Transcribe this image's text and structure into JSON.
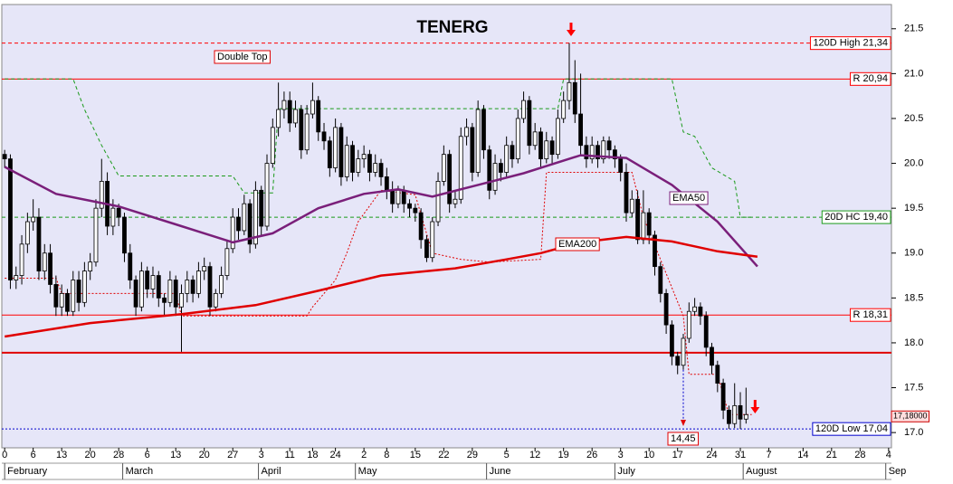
{
  "chart_data": {
    "type": "candlestick",
    "title": "TENERG",
    "title_color": "#1a8c1a",
    "background": "#e6e6f8",
    "xlim": [
      -0.5,
      155.5
    ],
    "ylim": [
      16.83,
      21.77
    ],
    "yticks": [
      {
        "value": 17,
        "label": "17.0"
      },
      17.5,
      {
        "value": 18,
        "label": "18.0"
      },
      18.5,
      {
        "value": 19,
        "label": "19.0"
      },
      19.5,
      {
        "value": 20,
        "label": "20.0"
      },
      20.5,
      {
        "value": 21,
        "label": "21.0"
      },
      21.5
    ],
    "xticks": [
      {
        "value": 0,
        "label": "0"
      },
      {
        "value": 5,
        "label": "6"
      },
      {
        "value": 10,
        "label": "13"
      },
      {
        "value": 15,
        "label": "20"
      },
      {
        "value": 20,
        "label": "28"
      },
      {
        "value": 25,
        "label": "6"
      },
      {
        "value": 30,
        "label": "13"
      },
      {
        "value": 35,
        "label": "20"
      },
      {
        "value": 40,
        "label": "27"
      },
      {
        "value": 45,
        "label": "3"
      },
      {
        "value": 50,
        "label": "11"
      },
      {
        "value": 54,
        "label": "18"
      },
      {
        "value": 58,
        "label": "24"
      },
      {
        "value": 63,
        "label": "2"
      },
      {
        "value": 67,
        "label": "8"
      },
      {
        "value": 72,
        "label": "15"
      },
      {
        "value": 77,
        "label": "22"
      },
      {
        "value": 82,
        "label": "29"
      },
      {
        "value": 88,
        "label": "5"
      },
      {
        "value": 93,
        "label": "12"
      },
      {
        "value": 98,
        "label": "19"
      },
      {
        "value": 103,
        "label": "26"
      },
      {
        "value": 108,
        "label": "3"
      },
      {
        "value": 113,
        "label": "10"
      },
      {
        "value": 118,
        "label": "17"
      },
      {
        "value": 124,
        "label": "24"
      },
      {
        "value": 129,
        "label": "31"
      },
      {
        "value": 134,
        "label": "7"
      },
      {
        "value": 140,
        "label": "14"
      },
      {
        "value": 145,
        "label": "21"
      },
      {
        "value": 150,
        "label": "28"
      },
      {
        "value": 155,
        "label": "4"
      }
    ],
    "month_ticks": [
      {
        "value": 0,
        "label": "February"
      },
      {
        "value": 20.7,
        "label": "March"
      },
      {
        "value": 44.5,
        "label": "April"
      },
      {
        "value": 61.5,
        "label": "May"
      },
      {
        "value": 84.5,
        "label": "June"
      },
      {
        "value": 107,
        "label": "July"
      },
      {
        "value": 129.5,
        "label": "August"
      },
      {
        "value": 154.5,
        "label": "Sep"
      }
    ],
    "ohlc": [
      [
        20.1,
        20.15,
        19.95,
        20.05
      ],
      [
        20.05,
        20.1,
        18.6,
        18.7
      ],
      [
        18.7,
        18.85,
        18.6,
        18.75
      ],
      [
        18.75,
        19.2,
        18.65,
        19.1
      ],
      [
        19.1,
        19.45,
        19.0,
        19.35
      ],
      [
        19.35,
        19.6,
        19.25,
        19.4
      ],
      [
        19.4,
        19.5,
        18.7,
        18.8
      ],
      [
        18.8,
        19.1,
        18.7,
        19.0
      ],
      [
        19.0,
        19.1,
        18.55,
        18.65
      ],
      [
        18.65,
        18.75,
        18.3,
        18.4
      ],
      [
        18.4,
        18.65,
        18.3,
        18.55
      ],
      [
        18.55,
        18.6,
        18.3,
        18.35
      ],
      [
        18.35,
        18.8,
        18.3,
        18.7
      ],
      [
        18.7,
        18.8,
        18.35,
        18.45
      ],
      [
        18.45,
        18.9,
        18.4,
        18.8
      ],
      [
        18.8,
        19.0,
        18.7,
        18.9
      ],
      [
        18.9,
        19.6,
        18.85,
        19.5
      ],
      [
        19.5,
        20.05,
        19.4,
        19.8
      ],
      [
        19.8,
        19.9,
        19.2,
        19.3
      ],
      [
        19.3,
        19.6,
        19.2,
        19.5
      ],
      [
        19.5,
        19.55,
        19.3,
        19.4
      ],
      [
        19.4,
        19.45,
        18.9,
        19.0
      ],
      [
        19.0,
        19.1,
        18.6,
        18.7
      ],
      [
        18.7,
        18.75,
        18.3,
        18.4
      ],
      [
        18.4,
        18.9,
        18.35,
        18.8
      ],
      [
        18.8,
        18.85,
        18.5,
        18.6
      ],
      [
        18.6,
        18.85,
        18.5,
        18.75
      ],
      [
        18.75,
        18.8,
        18.4,
        18.5
      ],
      [
        18.5,
        18.55,
        18.3,
        18.45
      ],
      [
        18.45,
        18.8,
        18.4,
        18.7
      ],
      [
        18.7,
        18.75,
        18.3,
        18.4
      ],
      [
        18.4,
        18.65,
        17.9,
        18.55
      ],
      [
        18.55,
        18.8,
        18.45,
        18.7
      ],
      [
        18.7,
        18.75,
        18.45,
        18.55
      ],
      [
        18.55,
        18.9,
        18.5,
        18.8
      ],
      [
        18.8,
        18.95,
        18.7,
        18.85
      ],
      [
        18.85,
        18.9,
        18.3,
        18.4
      ],
      [
        18.4,
        18.6,
        18.35,
        18.55
      ],
      [
        18.55,
        18.85,
        18.5,
        18.75
      ],
      [
        18.75,
        19.15,
        18.7,
        19.05
      ],
      [
        19.05,
        19.5,
        19.0,
        19.4
      ],
      [
        19.4,
        19.5,
        19.15,
        19.25
      ],
      [
        19.25,
        19.65,
        19.2,
        19.55
      ],
      [
        19.55,
        19.6,
        19.0,
        19.1
      ],
      [
        19.1,
        19.8,
        19.05,
        19.7
      ],
      [
        19.7,
        19.75,
        19.2,
        19.3
      ],
      [
        19.3,
        20.1,
        19.25,
        20.0
      ],
      [
        20.0,
        20.5,
        19.95,
        20.4
      ],
      [
        20.4,
        20.9,
        20.3,
        20.6
      ],
      [
        20.6,
        20.8,
        20.5,
        20.7
      ],
      [
        20.7,
        20.8,
        20.35,
        20.45
      ],
      [
        20.45,
        20.7,
        20.4,
        20.6
      ],
      [
        20.6,
        20.65,
        20.05,
        20.15
      ],
      [
        20.15,
        20.65,
        20.1,
        20.55
      ],
      [
        20.55,
        20.9,
        20.5,
        20.7
      ],
      [
        20.7,
        20.75,
        20.25,
        20.35
      ],
      [
        20.35,
        20.45,
        20.15,
        20.25
      ],
      [
        20.25,
        20.3,
        19.85,
        19.95
      ],
      [
        19.95,
        20.5,
        19.9,
        20.4
      ],
      [
        20.4,
        20.45,
        19.75,
        19.85
      ],
      [
        19.85,
        20.3,
        19.8,
        20.2
      ],
      [
        20.2,
        20.25,
        19.8,
        19.9
      ],
      [
        19.9,
        20.15,
        19.85,
        20.05
      ],
      [
        20.05,
        20.2,
        19.95,
        20.1
      ],
      [
        20.1,
        20.15,
        19.8,
        19.9
      ],
      [
        19.9,
        20.1,
        19.85,
        20.0
      ],
      [
        20.0,
        20.05,
        19.75,
        19.85
      ],
      [
        19.85,
        19.95,
        19.6,
        19.7
      ],
      [
        19.7,
        19.8,
        19.45,
        19.55
      ],
      [
        19.55,
        19.75,
        19.5,
        19.7
      ],
      [
        19.7,
        19.75,
        19.45,
        19.55
      ],
      [
        19.55,
        19.6,
        19.4,
        19.5
      ],
      [
        19.5,
        19.55,
        19.35,
        19.45
      ],
      [
        19.45,
        19.5,
        19.05,
        19.15
      ],
      [
        19.15,
        19.2,
        18.9,
        18.95
      ],
      [
        18.95,
        19.4,
        18.9,
        19.35
      ],
      [
        19.35,
        19.9,
        19.3,
        19.8
      ],
      [
        19.8,
        20.2,
        19.75,
        20.1
      ],
      [
        20.1,
        20.15,
        19.45,
        19.55
      ],
      [
        19.55,
        19.7,
        19.5,
        19.6
      ],
      [
        19.6,
        20.4,
        19.55,
        20.3
      ],
      [
        20.3,
        20.5,
        20.2,
        20.4
      ],
      [
        20.4,
        20.45,
        19.8,
        19.9
      ],
      [
        19.9,
        20.7,
        19.85,
        20.6
      ],
      [
        20.6,
        20.65,
        20.05,
        20.15
      ],
      [
        20.15,
        20.2,
        19.6,
        19.7
      ],
      [
        19.7,
        20.1,
        19.65,
        20.0
      ],
      [
        20.0,
        20.05,
        19.8,
        19.9
      ],
      [
        19.9,
        20.3,
        19.85,
        20.2
      ],
      [
        20.2,
        20.25,
        19.95,
        20.05
      ],
      [
        20.05,
        20.6,
        20.0,
        20.5
      ],
      [
        20.5,
        20.8,
        20.45,
        20.7
      ],
      [
        20.7,
        20.75,
        20.1,
        20.2
      ],
      [
        20.2,
        20.45,
        20.15,
        20.35
      ],
      [
        20.35,
        20.4,
        19.95,
        20.05
      ],
      [
        20.05,
        20.35,
        20.0,
        20.25
      ],
      [
        20.25,
        20.3,
        20.0,
        20.1
      ],
      [
        20.1,
        20.6,
        20.05,
        20.5
      ],
      [
        20.5,
        20.8,
        20.45,
        20.7
      ],
      [
        20.7,
        21.34,
        20.6,
        20.9
      ],
      [
        20.9,
        21.15,
        20.45,
        20.55
      ],
      [
        20.55,
        21.0,
        20.1,
        20.2
      ],
      [
        20.2,
        20.3,
        19.95,
        20.05
      ],
      [
        20.05,
        20.3,
        20.0,
        20.2
      ],
      [
        20.2,
        20.25,
        19.95,
        20.05
      ],
      [
        20.05,
        20.3,
        20.0,
        20.25
      ],
      [
        20.25,
        20.3,
        20.05,
        20.15
      ],
      [
        20.15,
        20.2,
        19.95,
        20.05
      ],
      [
        20.05,
        20.1,
        19.8,
        19.9
      ],
      [
        19.9,
        20.0,
        19.35,
        19.45
      ],
      [
        19.45,
        19.7,
        19.4,
        19.6
      ],
      [
        19.6,
        19.7,
        19.1,
        19.15
      ],
      [
        19.15,
        19.7,
        19.1,
        19.45
      ],
      [
        19.45,
        19.5,
        19.1,
        19.2
      ],
      [
        19.2,
        19.25,
        18.75,
        18.85
      ],
      [
        18.85,
        18.9,
        18.45,
        18.55
      ],
      [
        18.55,
        18.6,
        18.1,
        18.2
      ],
      [
        18.2,
        18.25,
        17.75,
        17.85
      ],
      [
        17.85,
        17.9,
        17.65,
        17.75
      ],
      [
        17.75,
        18.1,
        17.7,
        18.05
      ],
      [
        18.05,
        18.45,
        18.0,
        18.35
      ],
      [
        18.35,
        18.5,
        18.3,
        18.4
      ],
      [
        18.4,
        18.45,
        18.2,
        18.3
      ],
      [
        18.3,
        18.35,
        17.85,
        17.95
      ],
      [
        17.95,
        18.0,
        17.65,
        17.75
      ],
      [
        17.75,
        17.8,
        17.45,
        17.55
      ],
      [
        17.55,
        17.6,
        17.15,
        17.25
      ],
      [
        17.25,
        17.3,
        17.04,
        17.1
      ],
      [
        17.1,
        17.55,
        17.05,
        17.3
      ],
      [
        17.3,
        17.45,
        17.04,
        17.15
      ],
      [
        17.15,
        17.5,
        17.1,
        17.2
      ]
    ],
    "series": [
      {
        "name": "EMA50",
        "color": "#7a1f7a",
        "x": [
          0,
          9,
          20,
          31,
          40,
          47,
          55,
          63,
          69,
          75,
          83,
          91,
          101,
          109,
          117,
          125,
          132
        ],
        "values": [
          19.96,
          19.66,
          19.52,
          19.3,
          19.12,
          19.22,
          19.5,
          19.66,
          19.71,
          19.63,
          19.76,
          19.89,
          20.09,
          20.06,
          19.76,
          19.35,
          18.85
        ]
      },
      {
        "name": "EMA200",
        "color": "#e00000",
        "x": [
          0,
          15,
          31,
          44,
          55,
          66,
          79,
          88,
          94,
          101,
          109,
          117,
          125,
          132
        ],
        "values": [
          18.07,
          18.22,
          18.32,
          18.42,
          18.58,
          18.75,
          18.83,
          18.93,
          19.0,
          19.12,
          19.18,
          19.13,
          19.02,
          18.96
        ]
      }
    ],
    "overlays": [
      {
        "color": "#1a9a1a",
        "style": "dashed",
        "x": [
          0,
          12,
          14,
          17,
          20,
          40,
          42,
          47,
          48,
          97,
          98,
          117,
          119,
          121,
          124,
          128,
          129,
          131
        ],
        "values": [
          20.94,
          20.94,
          20.6,
          20.2,
          19.86,
          19.86,
          19.67,
          19.67,
          20.61,
          20.61,
          20.94,
          20.94,
          20.35,
          20.3,
          19.95,
          19.8,
          19.4,
          19.4
        ]
      },
      {
        "color": "#e00000",
        "style": "dotted",
        "x": [
          0,
          9,
          10,
          30,
          31,
          53,
          54,
          58,
          60,
          62,
          66,
          72,
          75,
          80,
          85,
          94,
          95,
          97,
          98,
          110,
          112,
          119,
          120,
          125,
          127,
          131
        ],
        "values": [
          18.72,
          18.72,
          18.55,
          18.55,
          18.3,
          18.3,
          18.4,
          18.7,
          19.0,
          19.35,
          19.7,
          19.65,
          19.0,
          18.93,
          18.9,
          18.93,
          19.9,
          19.9,
          19.9,
          19.9,
          19.4,
          18.3,
          17.65,
          17.65,
          17.2,
          17.2
        ]
      }
    ],
    "levels": [
      {
        "value": 21.34,
        "label": "120D High 21,34",
        "color": "#ff0000",
        "style": "dashed"
      },
      {
        "value": 20.94,
        "label": "R 20,94",
        "color": "#ff0000",
        "style": "solid"
      },
      {
        "value": 19.4,
        "label": "20D HC 19,40",
        "color": "#1a9a1a",
        "style": "dashed"
      },
      {
        "value": 18.31,
        "label": "R 18,31",
        "color": "#ff0000",
        "style": "solid"
      },
      {
        "value": 17.89,
        "color": "#e00000",
        "style": "thick"
      },
      {
        "value": 17.04,
        "label": "120D Low 17,04",
        "color": "#0000cc",
        "style": "dotted"
      }
    ],
    "last_price": {
      "value": 17.18,
      "label": "17,18000"
    },
    "annotations": [
      "Double Top",
      "14,45"
    ]
  }
}
